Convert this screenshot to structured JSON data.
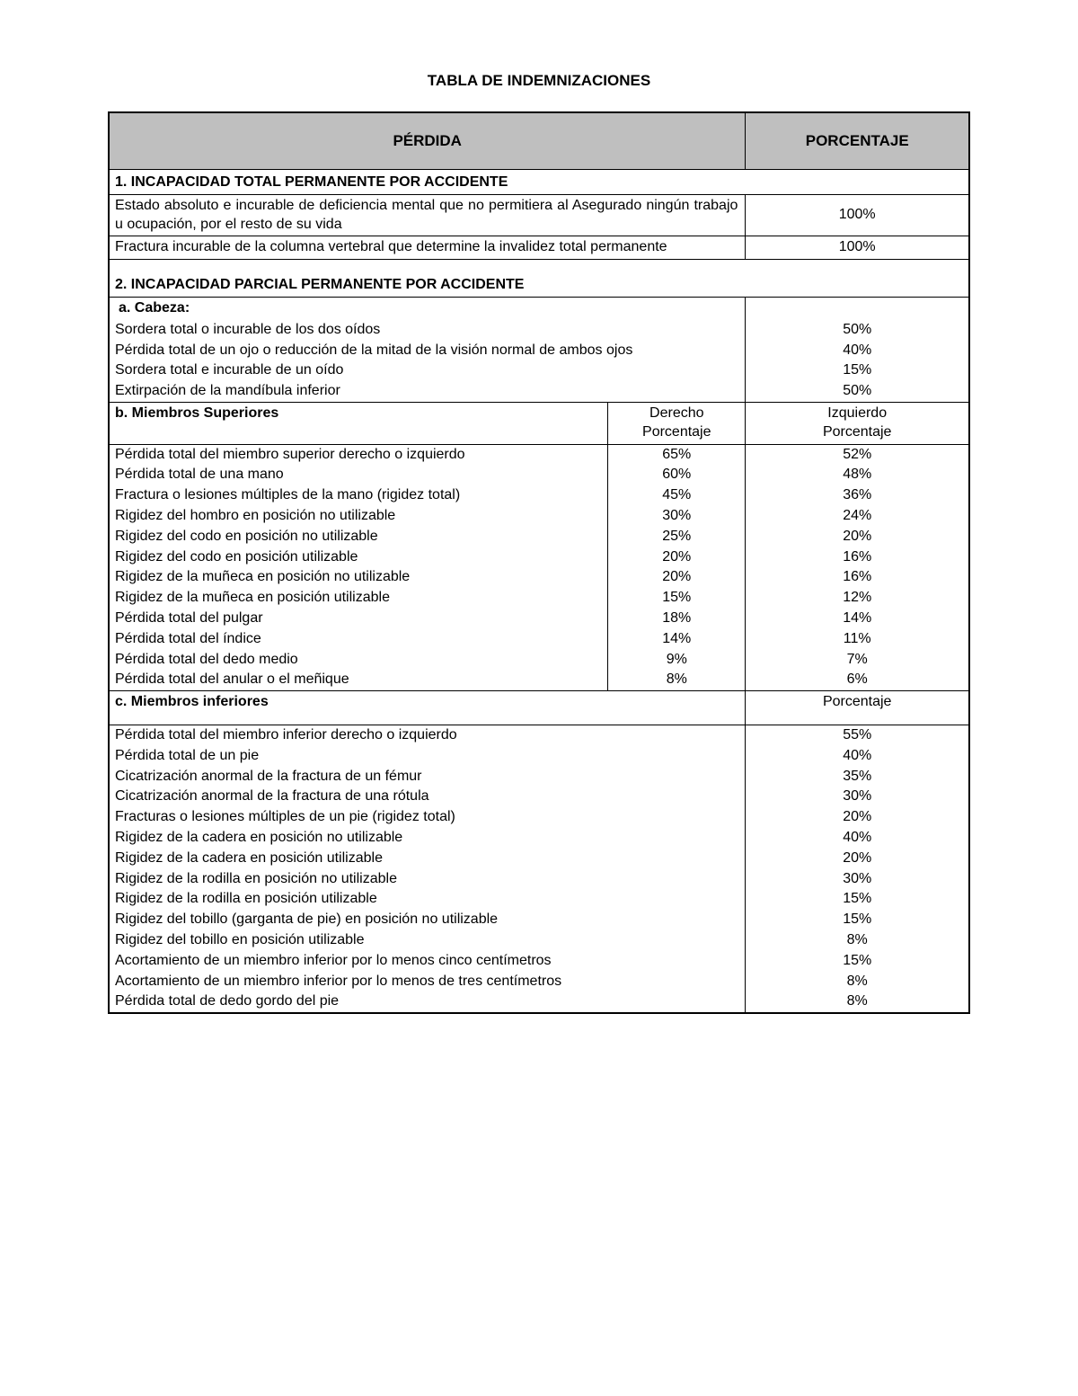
{
  "title": "TABLA DE INDEMNIZACIONES",
  "headers": {
    "loss": "PÉRDIDA",
    "pct": "PORCENTAJE"
  },
  "section1": {
    "title": "1. INCAPACIDAD TOTAL PERMANENTE POR ACCIDENTE",
    "rows": [
      {
        "desc": "Estado absoluto e incurable de deficiencia mental que no permitiera al Asegurado ningún trabajo u ocupación, por el resto de su vida",
        "pct": "100%"
      },
      {
        "desc": "Fractura incurable de la columna vertebral que determine la invalidez total permanente",
        "pct": "100%"
      }
    ]
  },
  "section2": {
    "title": "2. INCAPACIDAD PARCIAL PERMANENTE POR ACCIDENTE",
    "a": {
      "title": "a. Cabeza:",
      "rows": [
        {
          "desc": "Sordera total o incurable de los dos oídos",
          "pct": "50%"
        },
        {
          "desc": "Pérdida total de un ojo o reducción de la mitad de la visión normal de ambos ojos",
          "pct": "40%"
        },
        {
          "desc": "Sordera total e incurable de un oído",
          "pct": "15%"
        },
        {
          "desc": "Extirpación de la mandíbula inferior",
          "pct": "50%"
        }
      ]
    },
    "b": {
      "title": "b. Miembros Superiores",
      "col_right_1": "Derecho",
      "col_right_2": "Porcentaje",
      "col_left_1": "Izquierdo",
      "col_left_2": "Porcentaje",
      "rows": [
        {
          "desc": "Pérdida total del miembro superior derecho o izquierdo",
          "r": "65%",
          "l": "52%"
        },
        {
          "desc": "Pérdida total de una mano",
          "r": "60%",
          "l": "48%"
        },
        {
          "desc": "Fractura o lesiones múltiples de la mano (rigidez total)",
          "r": "45%",
          "l": "36%"
        },
        {
          "desc": "Rigidez del hombro en posición no utilizable",
          "r": "30%",
          "l": "24%"
        },
        {
          "desc": "Rigidez del codo en posición no utilizable",
          "r": "25%",
          "l": "20%"
        },
        {
          "desc": "Rigidez del codo en posición utilizable",
          "r": "20%",
          "l": "16%"
        },
        {
          "desc": "Rigidez de la muñeca en posición no utilizable",
          "r": "20%",
          "l": "16%"
        },
        {
          "desc": "Rigidez de la muñeca en posición utilizable",
          "r": "15%",
          "l": "12%"
        },
        {
          "desc": "Pérdida total del pulgar",
          "r": "18%",
          "l": "14%"
        },
        {
          "desc": "Pérdida total del índice",
          "r": "14%",
          "l": "11%"
        },
        {
          "desc": "Pérdida total del dedo medio",
          "r": "9%",
          "l": "7%"
        },
        {
          "desc": "Pérdida total del anular o el meñique",
          "r": "8%",
          "l": "6%"
        }
      ]
    },
    "c": {
      "title": "c. Miembros inferiores",
      "col_pct": "Porcentaje",
      "rows": [
        {
          "desc": "Pérdida total del miembro inferior derecho o izquierdo",
          "pct": "55%"
        },
        {
          "desc": "Pérdida total de un pie",
          "pct": "40%"
        },
        {
          "desc": "Cicatrización anormal de la fractura de un fémur",
          "pct": "35%"
        },
        {
          "desc": "Cicatrización anormal de la fractura de una rótula",
          "pct": "30%"
        },
        {
          "desc": "Fracturas o lesiones múltiples de un pie (rigidez total)",
          "pct": "20%"
        },
        {
          "desc": "Rigidez de la cadera en posición no utilizable",
          "pct": "40%"
        },
        {
          "desc": "Rigidez de la cadera en posición utilizable",
          "pct": "20%"
        },
        {
          "desc": "Rigidez de la rodilla en posición no utilizable",
          "pct": "30%"
        },
        {
          "desc": "Rigidez de la rodilla en posición utilizable",
          "pct": "15%"
        },
        {
          "desc": "Rigidez del tobillo (garganta de pie) en posición no utilizable",
          "pct": "15%"
        },
        {
          "desc": "Rigidez del tobillo en posición utilizable",
          "pct": "8%"
        },
        {
          "desc": "Acortamiento de un miembro inferior por lo menos cinco centímetros",
          "pct": "15%"
        },
        {
          "desc": "Acortamiento de un miembro inferior por lo menos de tres centímetros",
          "pct": "8%"
        },
        {
          "desc": "Pérdida total de dedo gordo del pie",
          "pct": "8%"
        }
      ]
    }
  }
}
